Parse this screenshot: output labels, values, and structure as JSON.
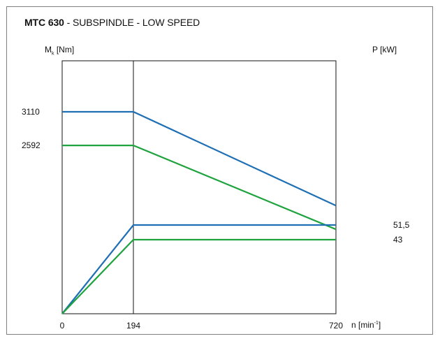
{
  "header": {
    "model": "MTC 630",
    "rest": " - SUBSPINDLE - LOW SPEED"
  },
  "chart_data": {
    "type": "line",
    "y_left_label_main": "M",
    "y_left_label_sub": "k",
    "y_left_label_unit": "[Nm]",
    "y_right_label": "P [kW]",
    "x_label_main": "n [min",
    "x_label_sup": "-1",
    "x_label_end": "]",
    "x_ticks": [
      "0",
      "194",
      "720"
    ],
    "y_left_ticks": [
      "3110",
      "2592"
    ],
    "y_right_ticks": [
      "51,5",
      "43"
    ],
    "x_range": [
      0,
      720
    ],
    "torque_range": [
      0,
      3110
    ],
    "power_range": [
      0,
      51.5
    ],
    "colors": {
      "blue": "#1f6fb5",
      "green": "#1fa33f"
    },
    "series": [
      {
        "kind": "torque",
        "color": "blue",
        "points": [
          [
            0,
            3110
          ],
          [
            194,
            3110
          ],
          [
            720,
            1665
          ]
        ]
      },
      {
        "kind": "torque",
        "color": "green",
        "points": [
          [
            0,
            2592
          ],
          [
            194,
            2592
          ],
          [
            720,
            1300
          ]
        ]
      },
      {
        "kind": "power",
        "color": "blue",
        "points": [
          [
            0,
            0
          ],
          [
            194,
            51.5
          ],
          [
            720,
            51.5
          ]
        ]
      },
      {
        "kind": "power",
        "color": "green",
        "points": [
          [
            0,
            0
          ],
          [
            194,
            43
          ],
          [
            720,
            43
          ]
        ]
      }
    ]
  }
}
